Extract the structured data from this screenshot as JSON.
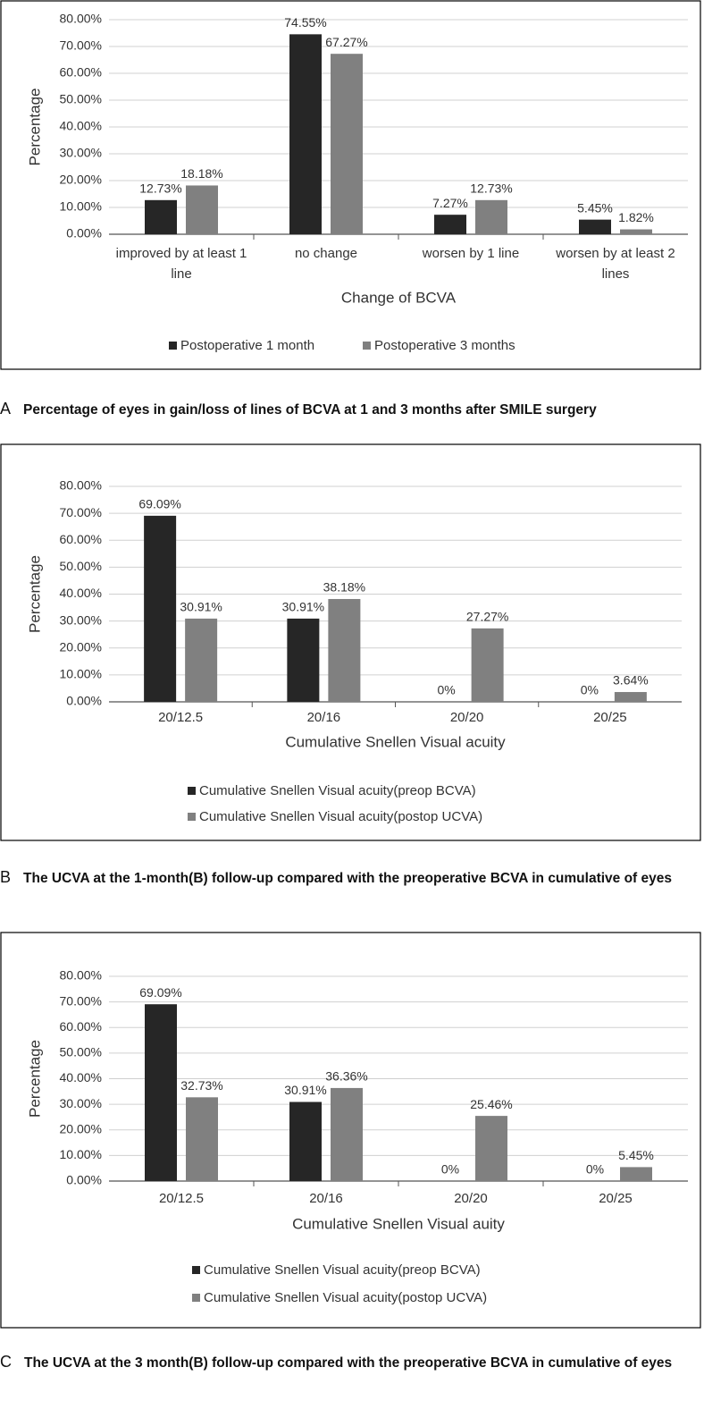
{
  "chart_data": [
    {
      "type": "bar",
      "panel": "A",
      "caption": "Percentage of eyes in gain/loss of lines of BCVA at 1 and 3 months after SMILE surgery",
      "x_label": "Change of BCVA",
      "y_label": "Percentage",
      "categories": [
        "improved by at least 1 line",
        "no change",
        "worsen by 1 line",
        "worsen by at least 2 lines"
      ],
      "series": [
        {
          "name": "Postoperative 1 month",
          "color": "#262626",
          "values": [
            12.73,
            74.55,
            7.27,
            5.45
          ],
          "value_labels": [
            "12.73%",
            "74.55%",
            "7.27%",
            "5.45%"
          ]
        },
        {
          "name": "Postoperative 3 months",
          "color": "#808080",
          "values": [
            18.18,
            67.27,
            12.73,
            1.82
          ],
          "value_labels": [
            "18.18%",
            "67.27%",
            "12.73%",
            "1.82%"
          ]
        }
      ],
      "ylim": [
        0,
        80
      ],
      "yticks": [
        {
          "value": 0,
          "label": "0.00%"
        },
        {
          "value": 10,
          "label": "10.00%"
        },
        {
          "value": 20,
          "label": "20.00%"
        },
        {
          "value": 30,
          "label": "30.00%"
        },
        {
          "value": 40,
          "label": "40.00%"
        },
        {
          "value": 50,
          "label": "50.00%"
        },
        {
          "value": 60,
          "label": "60.00%"
        },
        {
          "value": 70,
          "label": "70.00%"
        },
        {
          "value": 80,
          "label": "80.00%"
        }
      ],
      "grid": true,
      "legend": "bottom"
    },
    {
      "type": "bar",
      "panel": "B",
      "caption": "The UCVA at the 1-month(B) follow-up compared with the preoperative BCVA in cumulative of eyes",
      "x_label": "Cumulative Snellen Visual acuity",
      "y_label": "Percentage",
      "categories": [
        "20/12.5",
        "20/16",
        "20/20",
        "20/25"
      ],
      "series": [
        {
          "name": "Cumulative Snellen Visual acuity(preop BCVA)",
          "color": "#262626",
          "values": [
            69.09,
            30.91,
            0,
            0
          ],
          "value_labels": [
            "69.09%",
            "30.91%",
            "0%",
            "0%"
          ]
        },
        {
          "name": "Cumulative Snellen Visual acuity(postop UCVA)",
          "color": "#808080",
          "values": [
            30.91,
            38.18,
            27.27,
            3.64
          ],
          "value_labels": [
            "30.91%",
            "38.18%",
            "27.27%",
            "3.64%"
          ]
        }
      ],
      "ylim": [
        0,
        80
      ],
      "yticks": [
        {
          "value": 0,
          "label": "0.00%"
        },
        {
          "value": 10,
          "label": "10.00%"
        },
        {
          "value": 20,
          "label": "20.00%"
        },
        {
          "value": 30,
          "label": "30.00%"
        },
        {
          "value": 40,
          "label": "40.00%"
        },
        {
          "value": 50,
          "label": "50.00%"
        },
        {
          "value": 60,
          "label": "60.00%"
        },
        {
          "value": 70,
          "label": "70.00%"
        },
        {
          "value": 80,
          "label": "80.00%"
        }
      ],
      "grid": true,
      "legend": "bottom"
    },
    {
      "type": "bar",
      "panel": "C",
      "caption": "The UCVA at the 3 month(B) follow-up compared with the preoperative BCVA in cumulative of eyes",
      "x_label": "Cumulative Snellen Visual auity",
      "y_label": "Percentage",
      "categories": [
        "20/12.5",
        "20/16",
        "20/20",
        "20/25"
      ],
      "series": [
        {
          "name": "Cumulative Snellen Visual acuity(preop BCVA)",
          "color": "#262626",
          "values": [
            69.09,
            30.91,
            0,
            0
          ],
          "value_labels": [
            "69.09%",
            "30.91%",
            "0%",
            "0%"
          ]
        },
        {
          "name": "Cumulative Snellen Visual acuity(postop UCVA)",
          "color": "#808080",
          "values": [
            32.73,
            36.36,
            25.46,
            5.45
          ],
          "value_labels": [
            "32.73%",
            "36.36%",
            "25.46%",
            "5.45%"
          ]
        }
      ],
      "ylim": [
        0,
        80
      ],
      "yticks": [
        {
          "value": 0,
          "label": "0.00%"
        },
        {
          "value": 10,
          "label": "10.00%"
        },
        {
          "value": 20,
          "label": "20.00%"
        },
        {
          "value": 30,
          "label": "30.00%"
        },
        {
          "value": 40,
          "label": "40.00%"
        },
        {
          "value": 50,
          "label": "50.00%"
        },
        {
          "value": 60,
          "label": "60.00%"
        },
        {
          "value": 70,
          "label": "70.00%"
        },
        {
          "value": 80,
          "label": "80.00%"
        }
      ],
      "grid": true,
      "legend": "bottom"
    }
  ]
}
